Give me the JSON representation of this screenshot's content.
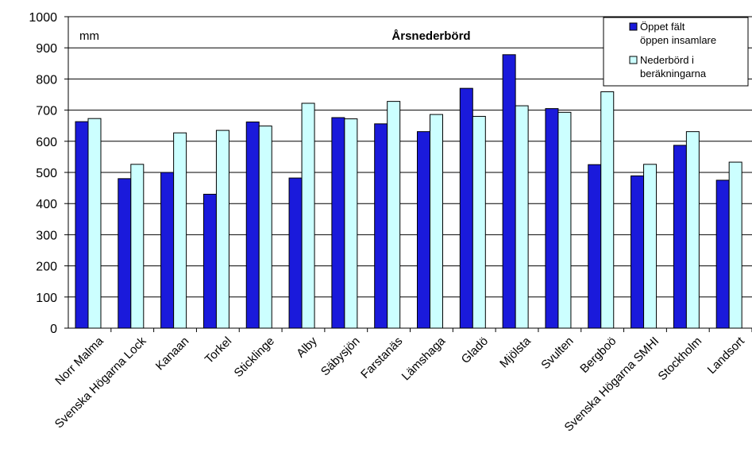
{
  "chart_data": {
    "type": "bar",
    "title": "Årsnederbörd",
    "unit_label": "mm",
    "ylim": [
      0,
      1000
    ],
    "yticks": [
      0,
      100,
      200,
      300,
      400,
      500,
      600,
      700,
      800,
      900,
      1000
    ],
    "grid": true,
    "legend_position": "top-right",
    "categories": [
      "Norr Malma",
      "Svenska Högarna Lock",
      "Kanaan",
      "Torkel",
      "Sticklinge",
      "Alby",
      "Säbysjön",
      "Farstanäs",
      "Lämshaga",
      "Gladö",
      "Mjölsta",
      "Svulten",
      "Bergboö",
      "Svenska Högarna SMHI",
      "Stockholm",
      "Landsort"
    ],
    "series": [
      {
        "name": "Öppet fält öppen insamlare",
        "legend_lines": [
          "Öppet fält",
          "öppen insamlare"
        ],
        "color": "#1a1adb",
        "values": [
          663,
          480,
          500,
          430,
          662,
          482,
          676,
          656,
          631,
          770,
          878,
          705,
          525,
          489,
          587,
          475
        ]
      },
      {
        "name": "Nederbörd i beräkningarna",
        "legend_lines": [
          "Nederbörd i",
          "beräkningarna"
        ],
        "color": "#ccffff",
        "values": [
          673,
          526,
          627,
          635,
          649,
          722,
          672,
          728,
          686,
          680,
          714,
          693,
          759,
          526,
          631,
          533
        ]
      }
    ]
  }
}
